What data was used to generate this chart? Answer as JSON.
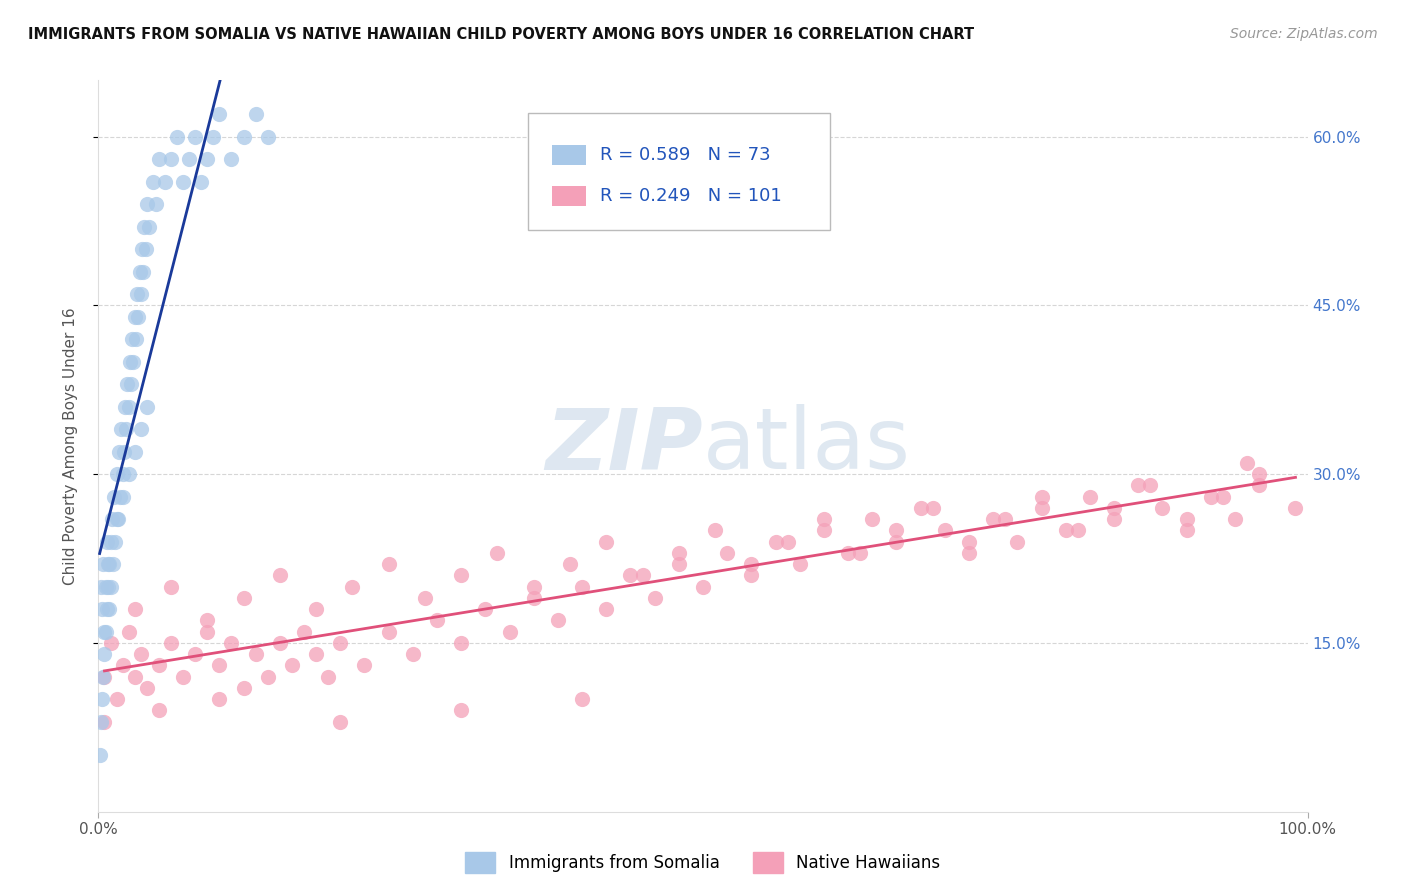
{
  "title": "IMMIGRANTS FROM SOMALIA VS NATIVE HAWAIIAN CHILD POVERTY AMONG BOYS UNDER 16 CORRELATION CHART",
  "source": "Source: ZipAtlas.com",
  "ylabel": "Child Poverty Among Boys Under 16",
  "xlim": [
    0.0,
    1.0
  ],
  "ylim": [
    0.0,
    0.65
  ],
  "r_somalia": 0.589,
  "n_somalia": 73,
  "r_hawaiian": 0.249,
  "n_hawaiian": 101,
  "somalia_color": "#a8c8e8",
  "hawaiian_color": "#f4a0b8",
  "somalia_line_color": "#1a3a9a",
  "hawaiian_line_color": "#e0507a",
  "watermark_color": "#c8d8e8",
  "somalia_scatter_x": [
    0.002,
    0.003,
    0.004,
    0.005,
    0.006,
    0.007,
    0.008,
    0.009,
    0.01,
    0.011,
    0.012,
    0.013,
    0.014,
    0.015,
    0.016,
    0.017,
    0.018,
    0.019,
    0.02,
    0.021,
    0.022,
    0.023,
    0.024,
    0.025,
    0.026,
    0.027,
    0.028,
    0.029,
    0.03,
    0.031,
    0.032,
    0.033,
    0.034,
    0.035,
    0.036,
    0.037,
    0.038,
    0.039,
    0.04,
    0.042,
    0.045,
    0.048,
    0.05,
    0.055,
    0.06,
    0.065,
    0.07,
    0.075,
    0.08,
    0.085,
    0.09,
    0.095,
    0.1,
    0.11,
    0.12,
    0.13,
    0.14,
    0.001,
    0.002,
    0.003,
    0.004,
    0.005,
    0.006,
    0.007,
    0.008,
    0.009,
    0.01,
    0.015,
    0.02,
    0.025,
    0.03,
    0.035,
    0.04
  ],
  "somalia_scatter_y": [
    0.2,
    0.18,
    0.22,
    0.16,
    0.2,
    0.24,
    0.22,
    0.18,
    0.2,
    0.26,
    0.22,
    0.28,
    0.24,
    0.3,
    0.26,
    0.32,
    0.28,
    0.34,
    0.3,
    0.32,
    0.36,
    0.34,
    0.38,
    0.36,
    0.4,
    0.38,
    0.42,
    0.4,
    0.44,
    0.42,
    0.46,
    0.44,
    0.48,
    0.46,
    0.5,
    0.48,
    0.52,
    0.5,
    0.54,
    0.52,
    0.56,
    0.54,
    0.58,
    0.56,
    0.58,
    0.6,
    0.56,
    0.58,
    0.6,
    0.56,
    0.58,
    0.6,
    0.62,
    0.58,
    0.6,
    0.62,
    0.6,
    0.05,
    0.08,
    0.1,
    0.12,
    0.14,
    0.16,
    0.18,
    0.2,
    0.22,
    0.24,
    0.26,
    0.28,
    0.3,
    0.32,
    0.34,
    0.36
  ],
  "hawaiian_scatter_x": [
    0.005,
    0.01,
    0.015,
    0.02,
    0.025,
    0.03,
    0.035,
    0.04,
    0.05,
    0.06,
    0.07,
    0.08,
    0.09,
    0.1,
    0.11,
    0.12,
    0.13,
    0.14,
    0.15,
    0.16,
    0.17,
    0.18,
    0.19,
    0.2,
    0.22,
    0.24,
    0.26,
    0.28,
    0.3,
    0.32,
    0.34,
    0.36,
    0.38,
    0.4,
    0.42,
    0.44,
    0.46,
    0.48,
    0.5,
    0.52,
    0.54,
    0.56,
    0.58,
    0.6,
    0.62,
    0.64,
    0.66,
    0.68,
    0.7,
    0.72,
    0.74,
    0.76,
    0.78,
    0.8,
    0.82,
    0.84,
    0.86,
    0.88,
    0.9,
    0.92,
    0.94,
    0.96,
    0.03,
    0.06,
    0.09,
    0.12,
    0.15,
    0.18,
    0.21,
    0.24,
    0.27,
    0.3,
    0.33,
    0.36,
    0.39,
    0.42,
    0.45,
    0.48,
    0.51,
    0.54,
    0.57,
    0.6,
    0.63,
    0.66,
    0.69,
    0.72,
    0.75,
    0.78,
    0.81,
    0.84,
    0.87,
    0.9,
    0.93,
    0.96,
    0.99,
    0.005,
    0.05,
    0.1,
    0.2,
    0.3,
    0.4,
    0.95
  ],
  "hawaiian_scatter_y": [
    0.12,
    0.15,
    0.1,
    0.13,
    0.16,
    0.12,
    0.14,
    0.11,
    0.13,
    0.15,
    0.12,
    0.14,
    0.16,
    0.13,
    0.15,
    0.11,
    0.14,
    0.12,
    0.15,
    0.13,
    0.16,
    0.14,
    0.12,
    0.15,
    0.13,
    0.16,
    0.14,
    0.17,
    0.15,
    0.18,
    0.16,
    0.19,
    0.17,
    0.2,
    0.18,
    0.21,
    0.19,
    0.22,
    0.2,
    0.23,
    0.21,
    0.24,
    0.22,
    0.25,
    0.23,
    0.26,
    0.24,
    0.27,
    0.25,
    0.23,
    0.26,
    0.24,
    0.27,
    0.25,
    0.28,
    0.26,
    0.29,
    0.27,
    0.25,
    0.28,
    0.26,
    0.29,
    0.18,
    0.2,
    0.17,
    0.19,
    0.21,
    0.18,
    0.2,
    0.22,
    0.19,
    0.21,
    0.23,
    0.2,
    0.22,
    0.24,
    0.21,
    0.23,
    0.25,
    0.22,
    0.24,
    0.26,
    0.23,
    0.25,
    0.27,
    0.24,
    0.26,
    0.28,
    0.25,
    0.27,
    0.29,
    0.26,
    0.28,
    0.3,
    0.27,
    0.08,
    0.09,
    0.1,
    0.08,
    0.09,
    0.1,
    0.31
  ]
}
